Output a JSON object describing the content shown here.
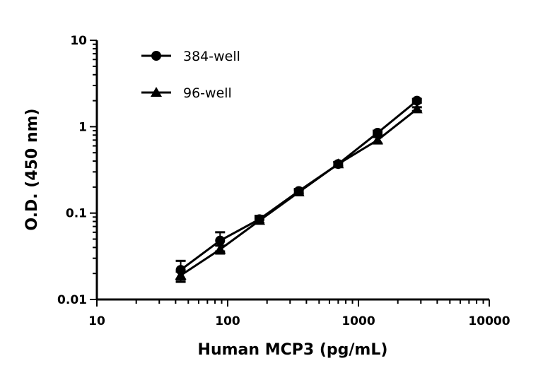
{
  "chart_data": {
    "type": "line",
    "title": "",
    "xlabel": "Human MCP3 (pg/mL)",
    "ylabel": "O.D. (450 nm)",
    "xscale": "log",
    "yscale": "log",
    "xlim": [
      10,
      10000
    ],
    "ylim": [
      0.01,
      10
    ],
    "xticks": [
      "10",
      "100",
      "1000",
      "10000"
    ],
    "yticks": [
      "0.01",
      "0.1",
      "1",
      "10"
    ],
    "grid": false,
    "legend_placement": "top-left",
    "x": [
      43.75,
      87.5,
      175,
      350,
      700,
      1400,
      2800
    ],
    "series": [
      {
        "name": "384-well",
        "marker": "circle",
        "color": "#000000",
        "values": [
          0.022,
          0.048,
          0.085,
          0.18,
          0.37,
          0.85,
          2.0
        ],
        "error": [
          0.006,
          0.012,
          0.008,
          0.01,
          0.02,
          0.05,
          0.1
        ]
      },
      {
        "name": "96-well",
        "marker": "triangle",
        "color": "#000000",
        "values": [
          0.019,
          0.038,
          0.082,
          0.175,
          0.37,
          0.7,
          1.6
        ],
        "error": [
          0.002,
          0.004,
          0.006,
          0.01,
          0.02,
          0.06,
          0.08
        ]
      }
    ]
  }
}
